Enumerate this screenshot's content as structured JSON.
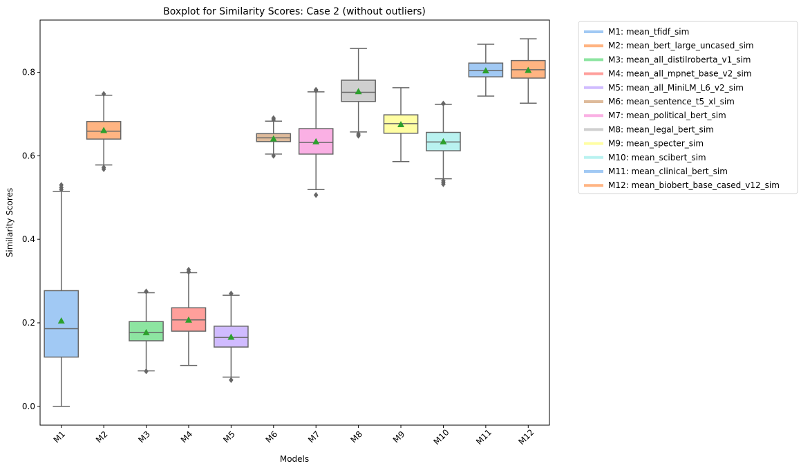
{
  "chart_data": {
    "type": "boxplot",
    "title": "Boxplot for Similarity Scores: Case 2 (without outliers)",
    "xlabel": "Models",
    "ylabel": "Similarity Scores",
    "ylim": [
      -0.045,
      0.925
    ],
    "yticks": [
      0.0,
      0.2,
      0.4,
      0.6,
      0.8
    ],
    "ytick_labels": [
      "0.0",
      "0.2",
      "0.4",
      "0.6",
      "0.8"
    ],
    "grid": false,
    "legend_position": "outside-right",
    "mean_marker_color": "#2ca02c",
    "line_color": "#666666",
    "categories": [
      "M1",
      "M2",
      "M3",
      "M4",
      "M5",
      "M6",
      "M7",
      "M8",
      "M9",
      "M10",
      "M11",
      "M12"
    ],
    "series": [
      {
        "category": "M1",
        "legend": "M1: mean_tfidf_sim",
        "color": "#a1c9f4",
        "whisker_low": 0.0,
        "q1": 0.118,
        "median": 0.186,
        "q3": 0.277,
        "whisker_high": 0.515,
        "mean": 0.205,
        "fliers": [
          0.519,
          0.524,
          0.53
        ]
      },
      {
        "category": "M2",
        "legend": "M2: mean_bert_large_uncased_sim",
        "color": "#ffb482",
        "whisker_low": 0.578,
        "q1": 0.64,
        "median": 0.659,
        "q3": 0.682,
        "whisker_high": 0.745,
        "mean": 0.661,
        "fliers": [
          0.568,
          0.572,
          0.748
        ]
      },
      {
        "category": "M3",
        "legend": "M3: mean_all_distilroberta_v1_sim",
        "color": "#8de5a1",
        "whisker_low": 0.085,
        "q1": 0.157,
        "median": 0.177,
        "q3": 0.203,
        "whisker_high": 0.272,
        "mean": 0.177,
        "fliers": [
          0.084,
          0.275
        ]
      },
      {
        "category": "M4",
        "legend": "M4: mean_all_mpnet_base_v2_sim",
        "color": "#ff9f9b",
        "whisker_low": 0.098,
        "q1": 0.18,
        "median": 0.207,
        "q3": 0.236,
        "whisker_high": 0.32,
        "mean": 0.207,
        "fliers": [
          0.322,
          0.327
        ]
      },
      {
        "category": "M5",
        "legend": "M5: mean_all_MiniLM_L6_v2_sim",
        "color": "#d0bbff",
        "whisker_low": 0.07,
        "q1": 0.142,
        "median": 0.165,
        "q3": 0.192,
        "whisker_high": 0.266,
        "mean": 0.166,
        "fliers": [
          0.063,
          0.27
        ]
      },
      {
        "category": "M6",
        "legend": "M6: mean_sentence_t5_xl_sim",
        "color": "#debb9b",
        "whisker_low": 0.604,
        "q1": 0.634,
        "median": 0.643,
        "q3": 0.653,
        "whisker_high": 0.683,
        "mean": 0.641,
        "fliers": [
          0.6,
          0.686,
          0.69
        ]
      },
      {
        "category": "M7",
        "legend": "M7: mean_political_bert_sim",
        "color": "#fab0e4",
        "whisker_low": 0.519,
        "q1": 0.604,
        "median": 0.632,
        "q3": 0.665,
        "whisker_high": 0.753,
        "mean": 0.634,
        "fliers": [
          0.506,
          0.756,
          0.758
        ]
      },
      {
        "category": "M8",
        "legend": "M8: mean_legal_bert_sim",
        "color": "#cfcfcf",
        "whisker_low": 0.657,
        "q1": 0.73,
        "median": 0.752,
        "q3": 0.781,
        "whisker_high": 0.857,
        "mean": 0.754,
        "fliers": [
          0.648,
          0.652
        ]
      },
      {
        "category": "M9",
        "legend": "M9: mean_specter_sim",
        "color": "#fffea3",
        "whisker_low": 0.586,
        "q1": 0.654,
        "median": 0.677,
        "q3": 0.698,
        "whisker_high": 0.763,
        "mean": 0.675,
        "fliers": []
      },
      {
        "category": "M10",
        "legend": "M10: mean_scibert_sim",
        "color": "#b9f2f0",
        "whisker_low": 0.545,
        "q1": 0.612,
        "median": 0.633,
        "q3": 0.656,
        "whisker_high": 0.723,
        "mean": 0.634,
        "fliers": [
          0.532,
          0.536,
          0.54,
          0.725
        ]
      },
      {
        "category": "M11",
        "legend": "M11: mean_clinical_bert_sim",
        "color": "#a1c9f4",
        "whisker_low": 0.743,
        "q1": 0.789,
        "median": 0.804,
        "q3": 0.822,
        "whisker_high": 0.867,
        "mean": 0.804,
        "fliers": []
      },
      {
        "category": "M12",
        "legend": "M12: mean_biobert_base_cased_v12_sim",
        "color": "#ffb482",
        "whisker_low": 0.726,
        "q1": 0.786,
        "median": 0.806,
        "q3": 0.828,
        "whisker_high": 0.88,
        "mean": 0.805,
        "fliers": []
      }
    ]
  }
}
